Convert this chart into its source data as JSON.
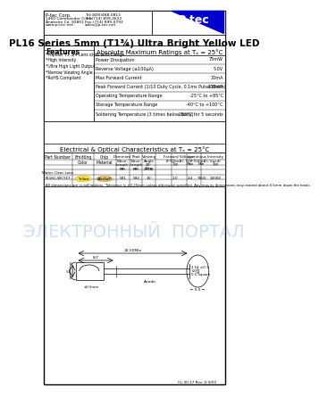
{
  "title": "PL16 Series 5mm (T1¾) Ultra Bright Yellow LED",
  "company_name": "P-tec Corp.",
  "company_addr1": "1460 Commander Circle",
  "company_addr2": "Anaheim Ca. 92801",
  "company_web": "www.p-tec.net",
  "company_tel": "Tel:(800)488-0813",
  "company_tel2": "Tel:(714) 899-2622",
  "company_fax": "Fax:(714) 899-0792",
  "company_email": "sales@p-tec.net",
  "features_title": "Features",
  "features": [
    "*Popular T1 3/4 Lens style with Flange",
    "*High Intensity",
    "*Ultra High Light Output",
    "*Narrow Viewing Angle",
    "*RoHS Compliant"
  ],
  "abs_max_title": "Absolute Maximum Ratings at Tₐ = 25°C",
  "abs_max_rows": [
    [
      "Power Dissipation",
      "75mW"
    ],
    [
      "Reverse Voltage (≤100μA)",
      "5.0V"
    ],
    [
      "Max Forward Current",
      "30mA"
    ],
    [
      "Peak Forward Current (1/10 Duty Cycle, 0.1ms Pulse Width)",
      "100mA"
    ],
    [
      "Operating Temperature Range",
      "-25°C to +85°C"
    ],
    [
      "Storage Temperature Range",
      "-40°C to +100°C"
    ],
    [
      "Soldering Temperature (3 times below body)",
      "260°C for 5 seconds"
    ]
  ],
  "elec_title": "Electrical & Optical Characteristics at Tₐ = 25°C",
  "elec_data_row2": [
    "PL16C-WCY17",
    "Yellow",
    "AlInGaP",
    "591",
    "592",
    "15°",
    "2.0",
    "2.4",
    "7000",
    "10000"
  ],
  "note": "All dimensions are in millimeters. Tolerance is ±0.25mm unless otherwise specified. Any inquiry dimensions may extend about 0.5mm down the leads.",
  "logo_text": "P-tec",
  "doc_num": "CL-30-17 Rev. D 9/03",
  "bg_color": "#ffffff",
  "logo_triangle_color": "#0000cc",
  "logo_text_color": "#ffffff",
  "title_font_size": 7.5
}
